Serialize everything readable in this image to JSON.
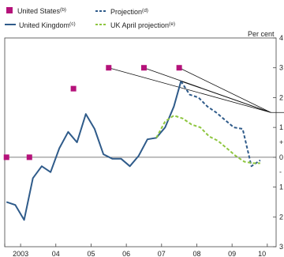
{
  "chart_data": {
    "type": "line",
    "unit": "Per cent",
    "legend": [
      {
        "label": "United States",
        "note": "(b)",
        "style": "square-marker",
        "color": "#b5127a"
      },
      {
        "label": "United Kingdom",
        "note": "(c)",
        "style": "solid-line",
        "color": "#2f5b8a"
      },
      {
        "label": "Projection",
        "note": "(d)",
        "style": "dashed-line",
        "color": "#2f5b8a"
      },
      {
        "label": "UK April projection",
        "note": "(e)",
        "style": "dashed-line",
        "color": "#8ec63f"
      }
    ],
    "x_ticks": [
      "2003",
      "04",
      "05",
      "06",
      "07",
      "08",
      "09",
      "10"
    ],
    "y_ticks_right": [
      "4",
      "3",
      "2",
      "1",
      "+",
      "0",
      "-",
      "1",
      "2",
      "3"
    ],
    "xlim": [
      2002.55,
      2010.25
    ],
    "ylim": [
      -3,
      4
    ],
    "series": [
      {
        "name": "United States",
        "kind": "markers",
        "color": "#b5127a",
        "points": [
          [
            2002.6,
            0.0
          ],
          [
            2003.25,
            0.0
          ],
          [
            2004.5,
            2.3
          ],
          [
            2005.5,
            3.0
          ],
          [
            2006.5,
            3.0
          ],
          [
            2007.5,
            3.0
          ]
        ]
      },
      {
        "name": "United Kingdom",
        "kind": "solid",
        "color": "#2f5b8a",
        "points": [
          [
            2002.6,
            -1.5
          ],
          [
            2002.85,
            -1.6
          ],
          [
            2003.1,
            -2.1
          ],
          [
            2003.35,
            -0.7
          ],
          [
            2003.6,
            -0.3
          ],
          [
            2003.85,
            -0.5
          ],
          [
            2004.1,
            0.3
          ],
          [
            2004.35,
            0.85
          ],
          [
            2004.6,
            0.5
          ],
          [
            2004.85,
            1.45
          ],
          [
            2005.1,
            0.95
          ],
          [
            2005.35,
            0.1
          ],
          [
            2005.6,
            -0.05
          ],
          [
            2005.85,
            -0.05
          ],
          [
            2006.1,
            -0.3
          ],
          [
            2006.35,
            0.05
          ],
          [
            2006.6,
            0.6
          ],
          [
            2006.85,
            0.65
          ],
          [
            2007.1,
            1.0
          ],
          [
            2007.35,
            1.7
          ],
          [
            2007.55,
            2.55
          ]
        ]
      },
      {
        "name": "Projection",
        "kind": "dashed",
        "color": "#2f5b8a",
        "points": [
          [
            2007.55,
            2.55
          ],
          [
            2007.8,
            2.1
          ],
          [
            2008.05,
            2.0
          ],
          [
            2008.3,
            1.7
          ],
          [
            2008.55,
            1.5
          ],
          [
            2008.8,
            1.25
          ],
          [
            2009.05,
            1.0
          ],
          [
            2009.3,
            0.95
          ],
          [
            2009.55,
            -0.3
          ],
          [
            2009.8,
            -0.1
          ]
        ]
      },
      {
        "name": "UK April projection",
        "kind": "dashed",
        "color": "#8ec63f",
        "points": [
          [
            2006.85,
            0.65
          ],
          [
            2007.1,
            1.2
          ],
          [
            2007.35,
            1.4
          ],
          [
            2007.6,
            1.3
          ],
          [
            2007.85,
            1.1
          ],
          [
            2008.1,
            1.0
          ],
          [
            2008.35,
            0.7
          ],
          [
            2008.6,
            0.55
          ],
          [
            2008.85,
            0.3
          ],
          [
            2009.1,
            0.05
          ],
          [
            2009.35,
            -0.15
          ],
          [
            2009.6,
            -0.2
          ],
          [
            2009.8,
            -0.2
          ]
        ]
      }
    ],
    "annotation_lines": {
      "target_point": [
        2010.1,
        1.5
      ],
      "from_points": [
        [
          2005.5,
          3.0
        ],
        [
          2006.5,
          3.0
        ],
        [
          2007.5,
          3.0
        ],
        [
          2007.55,
          2.55
        ]
      ]
    },
    "zero_line": true,
    "grid": false
  }
}
